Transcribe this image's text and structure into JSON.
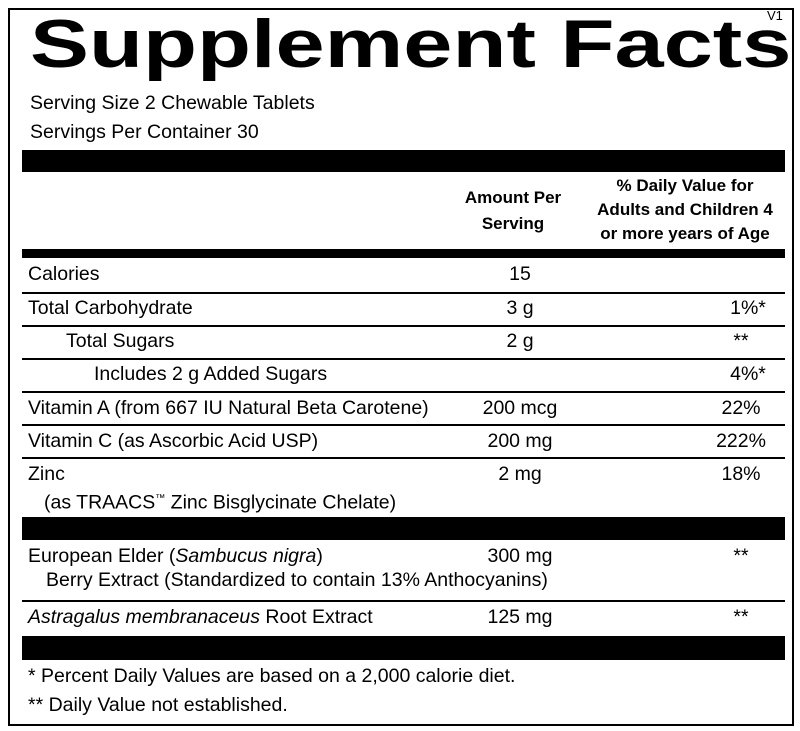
{
  "version": "V1",
  "title": "Supplement Facts",
  "serving": {
    "size": "Serving Size 2 Chewable Tablets",
    "per_container": "Servings Per Container 30"
  },
  "header": {
    "amount": [
      "Amount Per",
      "Serving"
    ],
    "daily_value": [
      "% Daily Value for",
      "Adults and Children 4",
      "or more years of Age"
    ]
  },
  "rows": [
    {
      "name": "Calories",
      "amount": "15"
    },
    {
      "name": "Total Carbohydrate",
      "amount": "3 g",
      "dv": "1%*"
    },
    {
      "name": "Total Sugars",
      "amount": "2 g",
      "dv": "**"
    },
    {
      "name": "Includes 2 g Added Sugars",
      "dv": "4%*"
    },
    {
      "name": "Vitamin A (from 667 IU Natural Beta Carotene)",
      "amount": "200 mcg",
      "dv": "22%"
    },
    {
      "name": "Vitamin C (as Ascorbic Acid USP)",
      "amount": "200 mg",
      "dv": "222%"
    },
    {
      "name": "Zinc",
      "sub": [
        "(as TRAACS",
        "™",
        " Zinc Bisglycinate Chelate)"
      ],
      "amount": "2 mg",
      "dv": "18%"
    }
  ],
  "other_rows": [
    {
      "name": [
        "European Elder (",
        "Sambucus nigra",
        ")"
      ],
      "sub": "Berry Extract (Standardized to contain 13% Anthocyanins)",
      "amount": "300 mg",
      "dv": "**"
    },
    {
      "name": [
        "Astragalus membranaceus",
        " Root Extract"
      ],
      "amount": "125 mg",
      "dv": "**"
    }
  ],
  "footnotes": [
    "* Percent Daily Values are based on a 2,000 calorie diet.",
    "** Daily Value not established."
  ]
}
